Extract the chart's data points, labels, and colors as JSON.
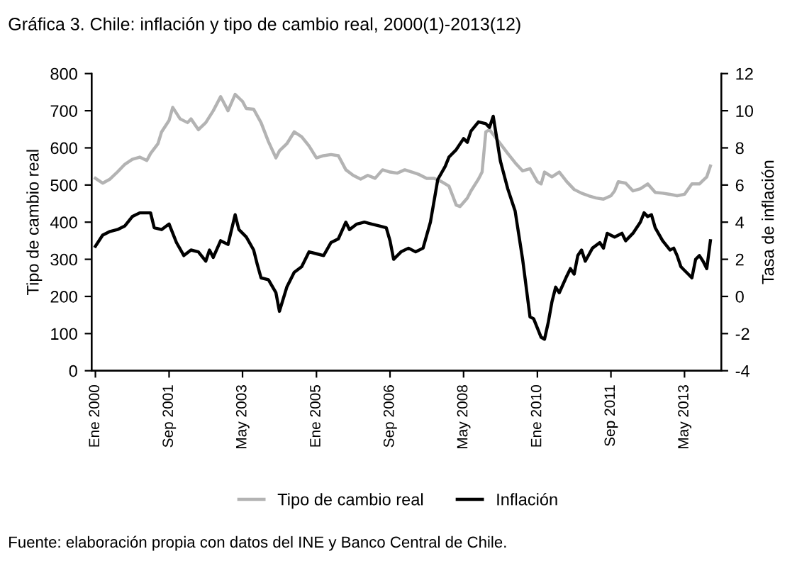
{
  "chart_data": {
    "type": "line",
    "title": "Gráfica 3. Chile: inflación y tipo de cambio real, 2000(1)-2013(12)",
    "ylabel": "Tipo de cambio real",
    "y2label": "Tasa de inflación",
    "xlim": [
      "1999-12",
      "2014-03"
    ],
    "xticks": [
      {
        "value": "2000-01",
        "label": "Ene 2000"
      },
      {
        "value": "2001-09",
        "label": "Sep 2001"
      },
      {
        "value": "2003-05",
        "label": "May 2003"
      },
      {
        "value": "2005-01",
        "label": "Ene 2005"
      },
      {
        "value": "2006-09",
        "label": "Sep 2006"
      },
      {
        "value": "2008-05",
        "label": "May 2008"
      },
      {
        "value": "2010-01",
        "label": "Ene 2010"
      },
      {
        "value": "2011-09",
        "label": "Sep 2011"
      },
      {
        "value": "2013-05",
        "label": "May 2013"
      }
    ],
    "ylim": [
      0,
      800
    ],
    "yticks": [
      0,
      100,
      200,
      300,
      400,
      500,
      600,
      700,
      800
    ],
    "y2lim": [
      -4,
      12
    ],
    "y2ticks": [
      -4,
      -2,
      0,
      2,
      4,
      6,
      8,
      10,
      12
    ],
    "grid": false,
    "legend": "bottom",
    "marker": "none",
    "line_style": "solid",
    "series": [
      {
        "name": "Tipo de cambio real",
        "color": "#b3b3b3",
        "x": [
          "2000-01",
          "2000-03",
          "2000-05",
          "2000-07",
          "2000-09",
          "2000-11",
          "2001-01",
          "2001-03",
          "2001-04",
          "2001-06",
          "2001-07",
          "2001-09",
          "2001-10",
          "2001-12",
          "2002-02",
          "2002-03",
          "2002-05",
          "2002-07",
          "2002-09",
          "2002-11",
          "2003-01",
          "2003-03",
          "2003-05",
          "2003-06",
          "2003-08",
          "2003-10",
          "2003-12",
          "2004-02",
          "2004-03",
          "2004-05",
          "2004-07",
          "2004-09",
          "2004-11",
          "2005-01",
          "2005-03",
          "2005-05",
          "2005-07",
          "2005-09",
          "2005-11",
          "2006-01",
          "2006-03",
          "2006-05",
          "2006-07",
          "2006-09",
          "2006-11",
          "2007-01",
          "2007-03",
          "2007-05",
          "2007-07",
          "2007-09",
          "2007-11",
          "2008-01",
          "2008-02",
          "2008-03",
          "2008-04",
          "2008-06",
          "2008-07",
          "2008-09",
          "2008-10",
          "2008-11",
          "2008-12",
          "2009-01",
          "2009-03",
          "2009-05",
          "2009-07",
          "2009-09",
          "2009-11",
          "2010-01",
          "2010-02",
          "2010-03",
          "2010-05",
          "2010-07",
          "2010-09",
          "2010-11",
          "2011-01",
          "2011-03",
          "2011-05",
          "2011-07",
          "2011-09",
          "2011-10",
          "2011-11",
          "2012-01",
          "2012-03",
          "2012-05",
          "2012-07",
          "2012-09",
          "2012-11",
          "2013-01",
          "2013-03",
          "2013-05",
          "2013-07",
          "2013-09",
          "2013-11",
          "2013-12"
        ],
        "values": [
          518,
          505,
          516,
          535,
          556,
          569,
          575,
          566,
          585,
          611,
          643,
          674,
          709,
          678,
          668,
          678,
          649,
          668,
          700,
          738,
          700,
          744,
          725,
          706,
          704,
          668,
          617,
          573,
          592,
          611,
          643,
          630,
          605,
          573,
          579,
          582,
          579,
          541,
          526,
          516,
          526,
          518,
          541,
          535,
          532,
          541,
          535,
          528,
          518,
          518,
          509,
          497,
          471,
          446,
          442,
          465,
          484,
          516,
          535,
          643,
          649,
          636,
          611,
          585,
          560,
          538,
          544,
          509,
          503,
          535,
          522,
          535,
          509,
          488,
          478,
          471,
          465,
          462,
          471,
          484,
          509,
          505,
          484,
          490,
          503,
          480,
          478,
          475,
          471,
          475,
          503,
          503,
          522,
          551
        ]
      },
      {
        "name": "Inflación",
        "color": "#000000",
        "axis": "y2",
        "x": [
          "2000-01",
          "2000-03",
          "2000-05",
          "2000-07",
          "2000-09",
          "2000-11",
          "2001-01",
          "2001-02",
          "2001-04",
          "2001-05",
          "2001-07",
          "2001-09",
          "2001-11",
          "2002-01",
          "2002-03",
          "2002-05",
          "2002-07",
          "2002-08",
          "2002-09",
          "2002-11",
          "2003-01",
          "2003-03",
          "2003-04",
          "2003-06",
          "2003-08",
          "2003-09",
          "2003-10",
          "2003-12",
          "2004-02",
          "2004-03",
          "2004-05",
          "2004-07",
          "2004-09",
          "2004-11",
          "2005-01",
          "2005-03",
          "2005-05",
          "2005-07",
          "2005-09",
          "2005-10",
          "2005-12",
          "2006-02",
          "2006-04",
          "2006-06",
          "2006-08",
          "2006-09",
          "2006-10",
          "2006-12",
          "2007-02",
          "2007-04",
          "2007-06",
          "2007-08",
          "2007-10",
          "2007-12",
          "2008-01",
          "2008-03",
          "2008-05",
          "2008-06",
          "2008-07",
          "2008-09",
          "2008-11",
          "2008-12",
          "2009-01",
          "2009-03",
          "2009-05",
          "2009-07",
          "2009-09",
          "2009-11",
          "2009-12",
          "2010-02",
          "2010-03",
          "2010-04",
          "2010-05",
          "2010-06",
          "2010-07",
          "2010-09",
          "2010-10",
          "2010-11",
          "2010-12",
          "2011-01",
          "2011-02",
          "2011-04",
          "2011-06",
          "2011-07",
          "2011-08",
          "2011-10",
          "2011-12",
          "2012-01",
          "2012-03",
          "2012-05",
          "2012-06",
          "2012-07",
          "2012-08",
          "2012-09",
          "2012-11",
          "2013-01",
          "2013-02",
          "2013-03",
          "2013-04",
          "2013-05",
          "2013-06",
          "2013-07",
          "2013-08",
          "2013-09",
          "2013-10",
          "2013-11",
          "2013-12"
        ],
        "values": [
          2.7,
          3.3,
          3.5,
          3.6,
          3.8,
          4.3,
          4.5,
          4.5,
          4.5,
          3.7,
          3.6,
          3.9,
          2.9,
          2.2,
          2.5,
          2.4,
          1.9,
          2.5,
          2.1,
          3.0,
          2.8,
          4.4,
          3.6,
          3.2,
          2.5,
          1.7,
          1.0,
          0.9,
          0.2,
          -0.8,
          0.5,
          1.3,
          1.6,
          2.4,
          2.3,
          2.2,
          2.9,
          3.1,
          4.0,
          3.6,
          3.9,
          4.0,
          3.9,
          3.8,
          3.7,
          3.0,
          2.0,
          2.4,
          2.6,
          2.4,
          2.6,
          4.0,
          6.3,
          7.0,
          7.5,
          7.9,
          8.5,
          8.3,
          8.9,
          9.4,
          9.3,
          9.1,
          9.7,
          7.3,
          5.8,
          4.6,
          2.0,
          -1.1,
          -1.2,
          -2.2,
          -2.3,
          -1.4,
          -0.3,
          0.5,
          0.2,
          1.1,
          1.5,
          1.2,
          2.2,
          2.5,
          1.9,
          2.6,
          2.9,
          2.6,
          3.4,
          3.2,
          3.4,
          3.0,
          3.4,
          4.0,
          4.5,
          4.3,
          4.4,
          3.7,
          3.0,
          2.5,
          2.6,
          2.2,
          1.6,
          1.4,
          1.2,
          1.0,
          2.0,
          2.2,
          1.9,
          1.5,
          3.0
        ]
      }
    ],
    "annotations": [
      "Fuente: elaboración propia con datos del INE y Banco Central de Chile."
    ]
  }
}
